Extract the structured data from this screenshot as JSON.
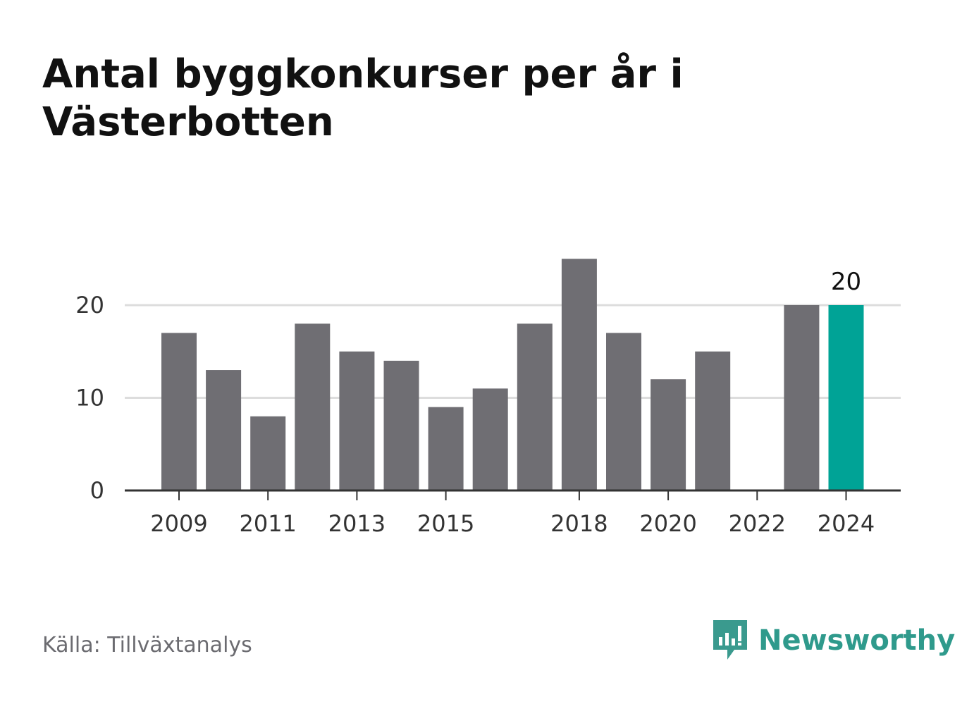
{
  "chart_data": {
    "type": "bar",
    "title": "Antal byggkonkurser per år i Västerbotten",
    "categories": [
      "2009",
      "2010",
      "2011",
      "2012",
      "2013",
      "2014",
      "2015",
      "2016",
      "2017",
      "2018",
      "2019",
      "2020",
      "2021",
      "2022",
      "2023",
      "2024"
    ],
    "x_tick_labels": [
      "2009",
      "2011",
      "2013",
      "2015",
      "2018",
      "2020",
      "2022",
      "2024"
    ],
    "values": [
      17,
      13,
      8,
      18,
      15,
      14,
      9,
      11,
      18,
      25,
      17,
      12,
      15,
      0,
      20,
      20
    ],
    "highlight": {
      "category": "2024",
      "label": "20"
    },
    "yticks": [
      0,
      10,
      20
    ],
    "ylim": [
      0,
      25
    ],
    "grid": true,
    "colors": {
      "bar": "#6f6e73",
      "highlight": "#00a396",
      "grid": "#dddddd",
      "axis": "#333333"
    }
  },
  "footer": {
    "source": "Källa: Tillväxtanalys",
    "brand": "Newsworthy",
    "brand_icon": "bar-chart-speech-bubble-icon",
    "brand_color": "#2f9a8c"
  }
}
